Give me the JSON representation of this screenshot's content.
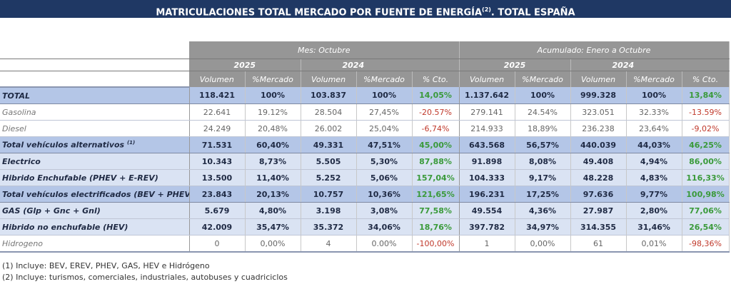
{
  "title": {
    "text": "MATRICULACIONES TOTAL MERCADO POR FUENTE DE ENERGÍA",
    "sup": "(2)",
    "suffix": ". TOTAL ESPAÑA"
  },
  "groups": [
    "Mes: Octubre",
    "Acumulado: Enero a Octubre"
  ],
  "years": [
    "2025",
    "2024",
    "2025",
    "2024"
  ],
  "columns": [
    "Volumen",
    "%Mercado",
    "Volumen",
    "%Mercado",
    "% Cto.",
    "Volumen",
    "%Mercado",
    "Volumen",
    "%Mercado",
    "% Cto."
  ],
  "rows": [
    {
      "label": "TOTAL",
      "sup": "",
      "style": "total",
      "values": [
        "118.421",
        "100%",
        "103.837",
        "100%",
        "14,05%",
        "1.137.642",
        "100%",
        "999.328",
        "100%",
        "13,84%"
      ]
    },
    {
      "label": "Gasolina",
      "sup": "",
      "style": "plain",
      "values": [
        "22.641",
        "19.12%",
        "28.504",
        "27,45%",
        "-20.57%",
        "279.141",
        "24.54%",
        "323.051",
        "32.33%",
        "-13.59%"
      ]
    },
    {
      "label": "Diesel",
      "sup": "",
      "style": "plain",
      "values": [
        "24.249",
        "20,48%",
        "26.002",
        "25,04%",
        "-6,74%",
        "214.933",
        "18,89%",
        "236.238",
        "23,64%",
        "-9,02%"
      ]
    },
    {
      "label": "Total vehículos alternativos",
      "sup": "(1)",
      "style": "sub",
      "values": [
        "71.531",
        "60,40%",
        "49.331",
        "47,51%",
        "45,00%",
        "643.568",
        "56,57%",
        "440.039",
        "44,03%",
        "46,25%"
      ]
    },
    {
      "label": "Electrico",
      "sup": "",
      "style": "light",
      "values": [
        "10.343",
        "8,73%",
        "5.505",
        "5,30%",
        "87,88%",
        "91.898",
        "8,08%",
        "49.408",
        "4,94%",
        "86,00%"
      ]
    },
    {
      "label": "Hibrido Enchufable (PHEV + E-REV)",
      "sup": "",
      "style": "light",
      "values": [
        "13.500",
        "11,40%",
        "5.252",
        "5,06%",
        "157,04%",
        "104.333",
        "9,17%",
        "48.228",
        "4,83%",
        "116,33%"
      ]
    },
    {
      "label": "Total vehículos electrificados (BEV + PHEV)",
      "sup": "",
      "style": "sub",
      "values": [
        "23.843",
        "20,13%",
        "10.757",
        "10,36%",
        "121,65%",
        "196.231",
        "17,25%",
        "97.636",
        "9,77%",
        "100,98%"
      ]
    },
    {
      "label": "GAS (Glp + Gnc + Gnl)",
      "sup": "",
      "style": "light",
      "values": [
        "5.679",
        "4,80%",
        "3.198",
        "3,08%",
        "77,58%",
        "49.554",
        "4,36%",
        "27.987",
        "2,80%",
        "77,06%"
      ]
    },
    {
      "label": "Hibrido no enchufable (HEV)",
      "sup": "",
      "style": "light",
      "values": [
        "42.009",
        "35,47%",
        "35.372",
        "34,06%",
        "18,76%",
        "397.782",
        "34,97%",
        "314.355",
        "31,46%",
        "26,54%"
      ]
    },
    {
      "label": "Hidrogeno",
      "sup": "",
      "style": "plain last",
      "values": [
        "0",
        "0,00%",
        "4",
        "0.00%",
        "-100,00%",
        "1",
        "0,00%",
        "61",
        "0,01%",
        "-98,36%"
      ]
    }
  ],
  "footnotes": [
    "(1) Incluye: BEV, EREV, PHEV, GAS, HEV e Hidrógeno",
    "(2) Incluye: turismos, comerciales, industriales, autobuses y cuadriciclos"
  ],
  "colors": {
    "title_bg": "#1f3864",
    "header_bg": "#969696",
    "row_dark": "#b4c6e7",
    "row_light": "#dae3f3",
    "positive": "#3a9a3a",
    "negative": "#c0392b"
  }
}
